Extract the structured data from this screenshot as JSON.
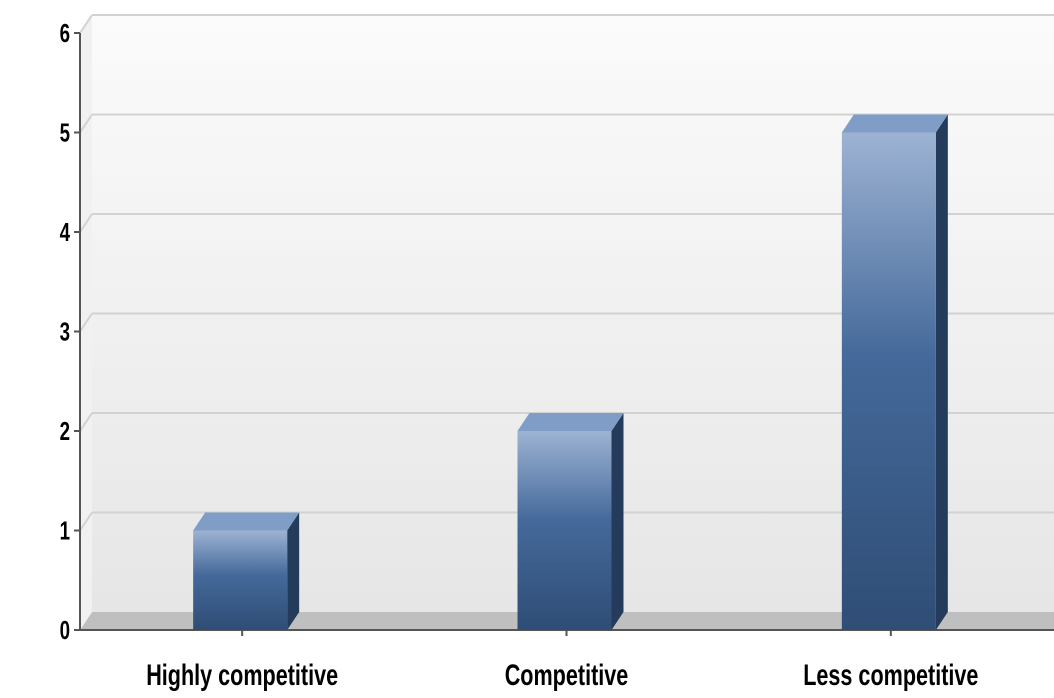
{
  "chart_data": {
    "type": "bar",
    "categories": [
      "Highly competitive",
      "Competitive",
      "Less competitive"
    ],
    "values": [
      1,
      2,
      5
    ],
    "title": "",
    "xlabel": "",
    "ylabel": "",
    "ylim": [
      0,
      6
    ],
    "yticks": [
      "0",
      "1",
      "2",
      "3",
      "4",
      "5",
      "6"
    ],
    "grid": true,
    "three_d": true,
    "legend": "none",
    "colors": {
      "bar_light": "#9db3d3",
      "bar_mid": "#44699a",
      "bar_dark": "#2f4d75",
      "bar_top": "#7f9dc6",
      "bar_side": "#243b5c",
      "plot_bg_top": "#fbfbfb",
      "plot_bg_bottom": "#e6e6e6",
      "grid": "#d2d2d2",
      "floor": "#bfbfbf",
      "axis": "#555555"
    }
  }
}
